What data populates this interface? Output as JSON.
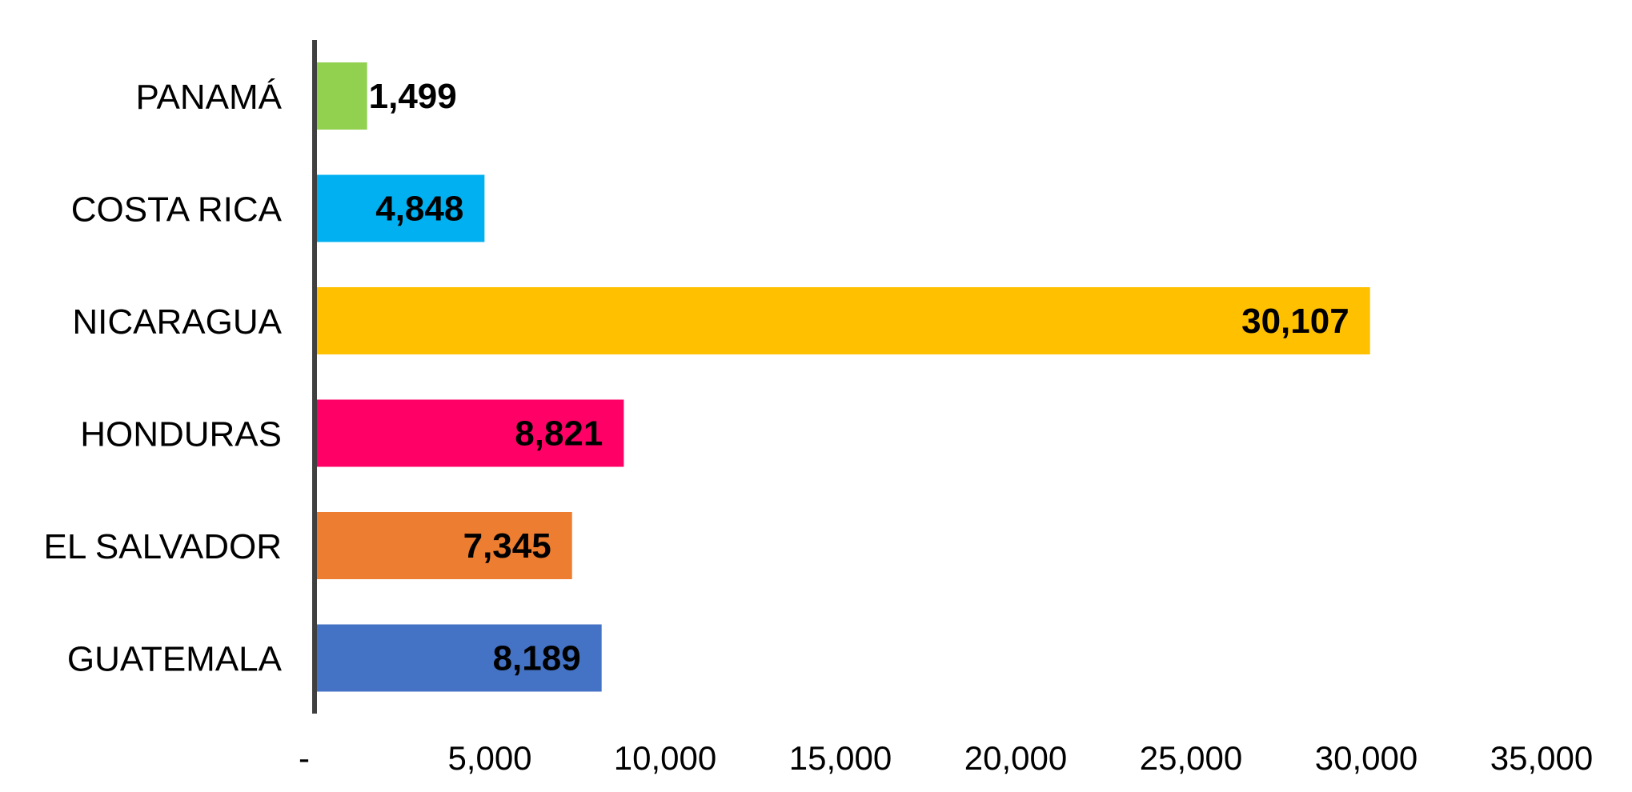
{
  "chart_data": {
    "type": "bar",
    "orientation": "horizontal",
    "categories": [
      "PANAMÁ",
      "COSTA RICA",
      "NICARAGUA",
      "HONDURAS",
      "EL SALVADOR",
      "GUATEMALA"
    ],
    "values": [
      1499,
      4848,
      30107,
      8821,
      7345,
      8189
    ],
    "data_labels": [
      "1,499",
      "4,848",
      "30,107",
      "8,821",
      "7,345",
      "8,189"
    ],
    "colors": [
      "#92D050",
      "#00B0F0",
      "#FFC000",
      "#FF0066",
      "#ED7D31",
      "#4472C4"
    ],
    "x_ticks": [
      0,
      5000,
      10000,
      15000,
      20000,
      25000,
      30000,
      35000
    ],
    "x_tick_labels": [
      "-",
      "5,000",
      "10,000",
      "15,000",
      "20,000",
      "25,000",
      "30,000",
      "35,000"
    ],
    "xlim": [
      0,
      35000
    ],
    "title": "",
    "xlabel": "",
    "ylabel": "",
    "grid": false,
    "legend": "none",
    "axis_color": "#404040"
  }
}
